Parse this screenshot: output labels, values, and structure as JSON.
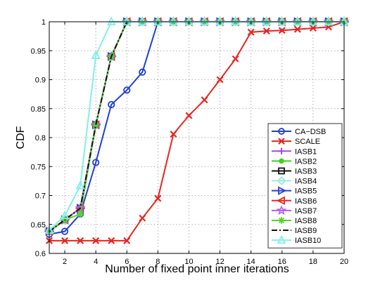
{
  "chart_data": {
    "type": "line",
    "title": "",
    "xlabel": "Number of fixed point inner iterations",
    "ylabel": "CDF",
    "xlim": [
      1,
      20
    ],
    "ylim": [
      0.6,
      1.0
    ],
    "xticks": [
      "2",
      "4",
      "6",
      "8",
      "10",
      "12",
      "14",
      "16",
      "18",
      "20"
    ],
    "yticks": [
      "0.6",
      "0.65",
      "0.7",
      "0.75",
      "0.8",
      "0.85",
      "0.9",
      "0.95",
      "1"
    ],
    "grid": true,
    "legend_position": "bottom-right",
    "series": [
      {
        "name": "CA−DSB",
        "color": "#1f3fd6",
        "marker": "circle",
        "line": "solid",
        "x": [
          1,
          2,
          3,
          4,
          5,
          6,
          7,
          8,
          9,
          10,
          11,
          12,
          13,
          14,
          15,
          16,
          17,
          18,
          19,
          20
        ],
        "y": [
          0.633,
          0.638,
          0.668,
          0.757,
          0.857,
          0.882,
          0.913,
          1,
          1,
          1,
          1,
          1,
          1,
          1,
          1,
          1,
          1,
          1,
          1,
          1
        ]
      },
      {
        "name": "SCALE",
        "color": "#e6261f",
        "marker": "x",
        "line": "solid",
        "x": [
          1,
          2,
          3,
          4,
          5,
          6,
          7,
          8,
          9,
          10,
          11,
          12,
          13,
          14,
          15,
          16,
          17,
          18,
          19,
          20
        ],
        "y": [
          0.622,
          0.622,
          0.622,
          0.622,
          0.622,
          0.622,
          0.661,
          0.695,
          0.806,
          0.838,
          0.865,
          0.9,
          0.936,
          0.982,
          0.984,
          0.985,
          0.987,
          0.989,
          0.991,
          1
        ]
      },
      {
        "name": "IASB1",
        "color": "#a24be6",
        "marker": "plus",
        "line": "solid",
        "x": [
          1,
          2,
          3,
          4,
          5,
          6,
          7,
          8,
          9,
          10,
          11,
          12,
          13,
          14,
          15,
          16,
          17,
          18,
          19,
          20
        ],
        "y": [
          0.638,
          0.658,
          0.678,
          0.822,
          0.94,
          1,
          1,
          1,
          1,
          1,
          1,
          1,
          1,
          1,
          1,
          1,
          1,
          1,
          1,
          1
        ]
      },
      {
        "name": "IASB2",
        "color": "#44cc22",
        "marker": "dot",
        "line": "solid",
        "x": [
          1,
          2,
          3,
          4,
          5,
          6,
          7,
          8,
          9,
          10,
          11,
          12,
          13,
          14,
          15,
          16,
          17,
          18,
          19,
          20
        ],
        "y": [
          0.638,
          0.658,
          0.678,
          0.822,
          0.94,
          1,
          1,
          1,
          1,
          1,
          1,
          1,
          1,
          1,
          1,
          1,
          1,
          1,
          1,
          1
        ]
      },
      {
        "name": "IASB3",
        "color": "#111111",
        "marker": "square",
        "line": "solid",
        "x": [
          1,
          2,
          3,
          4,
          5,
          6,
          7,
          8,
          9,
          10,
          11,
          12,
          13,
          14,
          15,
          16,
          17,
          18,
          19,
          20
        ],
        "y": [
          0.638,
          0.658,
          0.678,
          0.822,
          0.94,
          1,
          1,
          1,
          1,
          1,
          1,
          1,
          1,
          1,
          1,
          1,
          1,
          1,
          1,
          1
        ]
      },
      {
        "name": "IASB4",
        "color": "#9fe8e0",
        "marker": "diamond",
        "line": "solid",
        "x": [
          1,
          2,
          3,
          4,
          5,
          6,
          7,
          8,
          9,
          10,
          11,
          12,
          13,
          14,
          15,
          16,
          17,
          18,
          19,
          20
        ],
        "y": [
          0.638,
          0.658,
          0.678,
          0.822,
          0.94,
          1,
          1,
          1,
          1,
          1,
          1,
          1,
          1,
          1,
          1,
          1,
          1,
          1,
          1,
          1
        ]
      },
      {
        "name": "IASB5",
        "color": "#2a3fd9",
        "marker": "triangle-right",
        "line": "solid",
        "x": [
          1,
          2,
          3,
          4,
          5,
          6,
          7,
          8,
          9,
          10,
          11,
          12,
          13,
          14,
          15,
          16,
          17,
          18,
          19,
          20
        ],
        "y": [
          0.638,
          0.658,
          0.678,
          0.822,
          0.94,
          1,
          1,
          1,
          1,
          1,
          1,
          1,
          1,
          1,
          1,
          1,
          1,
          1,
          1,
          1
        ]
      },
      {
        "name": "IASB6",
        "color": "#e6261f",
        "marker": "triangle-left",
        "line": "solid",
        "x": [
          1,
          2,
          3,
          4,
          5,
          6,
          7,
          8,
          9,
          10,
          11,
          12,
          13,
          14,
          15,
          16,
          17,
          18,
          19,
          20
        ],
        "y": [
          0.638,
          0.658,
          0.678,
          0.822,
          0.94,
          1,
          1,
          1,
          1,
          1,
          1,
          1,
          1,
          1,
          1,
          1,
          1,
          1,
          1,
          1
        ]
      },
      {
        "name": "IASB7",
        "color": "#b25be8",
        "marker": "star",
        "line": "solid",
        "x": [
          1,
          2,
          3,
          4,
          5,
          6,
          7,
          8,
          9,
          10,
          11,
          12,
          13,
          14,
          15,
          16,
          17,
          18,
          19,
          20
        ],
        "y": [
          0.638,
          0.658,
          0.678,
          0.822,
          0.94,
          1,
          1,
          1,
          1,
          1,
          1,
          1,
          1,
          1,
          1,
          1,
          1,
          1,
          1,
          1
        ]
      },
      {
        "name": "IASB8",
        "color": "#55d42a",
        "marker": "asterisk",
        "line": "solid",
        "x": [
          1,
          2,
          3,
          4,
          5,
          6,
          7,
          8,
          9,
          10,
          11,
          12,
          13,
          14,
          15,
          16,
          17,
          18,
          19,
          20
        ],
        "y": [
          0.638,
          0.658,
          0.668,
          0.822,
          0.94,
          1,
          1,
          1,
          1,
          1,
          1,
          1,
          1,
          1,
          1,
          1,
          1,
          1,
          1,
          1
        ]
      },
      {
        "name": "IASB9",
        "color": "#111111",
        "marker": "none",
        "line": "dashdot",
        "x": [
          1,
          2,
          3,
          4,
          5,
          6,
          7,
          8,
          9,
          10,
          11,
          12,
          13,
          14,
          15,
          16,
          17,
          18,
          19,
          20
        ],
        "y": [
          0.638,
          0.658,
          0.678,
          0.822,
          0.94,
          1,
          1,
          1,
          1,
          1,
          1,
          1,
          1,
          1,
          1,
          1,
          1,
          1,
          1,
          1
        ]
      },
      {
        "name": "IASB10",
        "color": "#7ff2e4",
        "marker": "triangle-up",
        "line": "solid",
        "x": [
          1,
          2,
          3,
          4,
          5,
          6,
          7,
          8,
          9,
          10,
          11,
          12,
          13,
          14,
          15,
          16,
          17,
          18,
          19,
          20
        ],
        "y": [
          0.64,
          0.665,
          0.717,
          0.942,
          1,
          1,
          1,
          1,
          1,
          1,
          1,
          1,
          1,
          1,
          1,
          1,
          1,
          1,
          1,
          1
        ]
      }
    ]
  }
}
